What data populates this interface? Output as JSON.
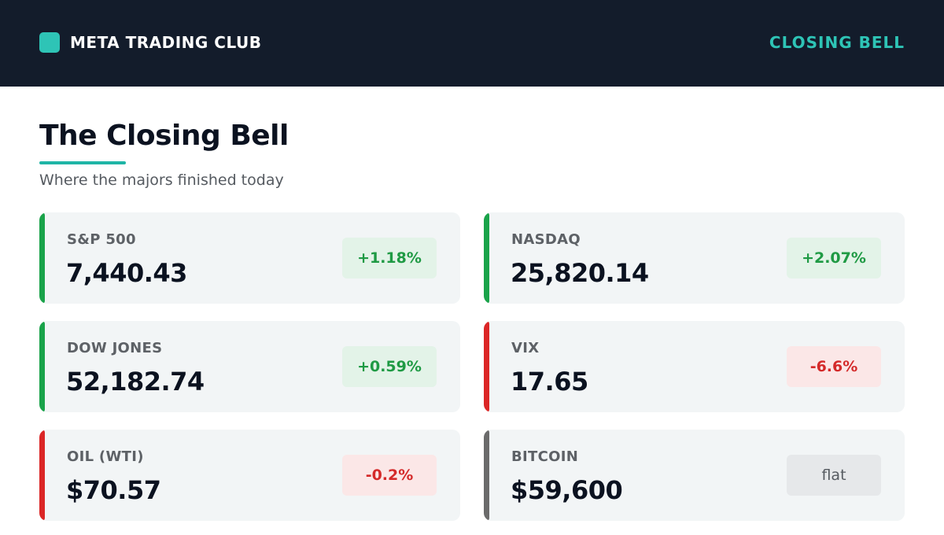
{
  "header": {
    "brand_name": "META TRADING CLUB",
    "section_label": "CLOSING BELL",
    "logo_icon": "square-logo-icon",
    "brand_color": "#131c2b",
    "accent_color": "#2ec4b6"
  },
  "page": {
    "title": "The Closing Bell",
    "subtitle": "Where the majors finished today"
  },
  "colors": {
    "up": "#1aa34a",
    "down": "#db2626",
    "flat": "#6b6b6b"
  },
  "markets": [
    {
      "label": "S&P 500",
      "value": "7,440.43",
      "change": "+1.18%",
      "direction": "up"
    },
    {
      "label": "NASDAQ",
      "value": "25,820.14",
      "change": "+2.07%",
      "direction": "up"
    },
    {
      "label": "DOW JONES",
      "value": "52,182.74",
      "change": "+0.59%",
      "direction": "up"
    },
    {
      "label": "VIX",
      "value": "17.65",
      "change": "-6.6%",
      "direction": "down"
    },
    {
      "label": "OIL (WTI)",
      "value": "$70.57",
      "change": "-0.2%",
      "direction": "down"
    },
    {
      "label": "BITCOIN",
      "value": "$59,600",
      "change": "flat",
      "direction": "flat"
    }
  ]
}
